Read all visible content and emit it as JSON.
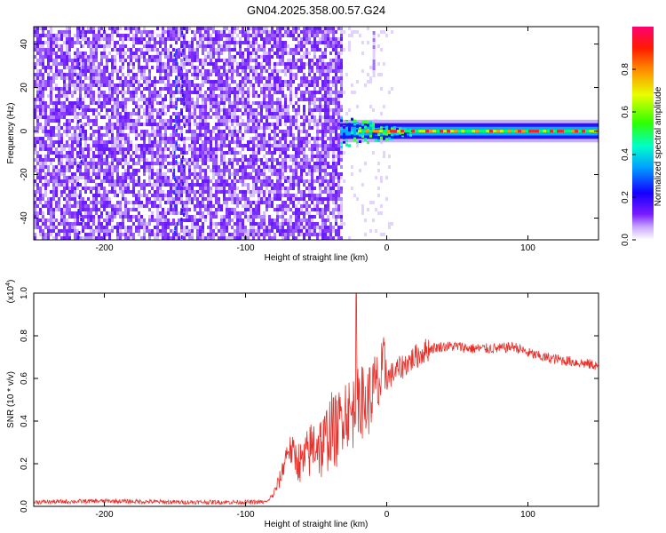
{
  "title": "GN04.2025.358.00.57.G24",
  "chart_data": [
    {
      "type": "heatmap",
      "name": "spectrogram",
      "xlabel": "Height of straight line (km)",
      "ylabel": "Frequency (Hz)",
      "xlim": [
        -250,
        150
      ],
      "ylim": [
        -50,
        48
      ],
      "xticks": [
        -200,
        -100,
        0,
        100
      ],
      "yticks": [
        -40,
        -20,
        0,
        20,
        40
      ],
      "noise_region_x": [
        -250,
        -33
      ],
      "signal_band": {
        "x_start": -33,
        "x_end": 150,
        "center_freq_hz": 0,
        "halfwidth_hz": 4
      },
      "colorbar": {
        "label": "Normalized spectral amplitude",
        "range": [
          0.0,
          1.0
        ],
        "ticks": [
          0.0,
          0.2,
          0.4,
          0.6,
          0.8
        ],
        "colors": [
          "#ffffff",
          "#9b59ff",
          "#6a00ff",
          "#0000ff",
          "#00c8ff",
          "#00ff80",
          "#7fff00",
          "#ffff00",
          "#ff8000",
          "#ff0000",
          "#ff0080"
        ]
      }
    },
    {
      "type": "line",
      "name": "snr",
      "xlabel": "Height of straight line (km)",
      "ylabel": "SNR (10 * v/v)",
      "scale_label": "(x10",
      "scale_exp": "4",
      "scale_close": ")",
      "xlim": [
        -250,
        150
      ],
      "ylim": [
        0,
        1.0
      ],
      "xticks": [
        -200,
        -100,
        0,
        100
      ],
      "yticks": [
        0.0,
        0.2,
        0.4,
        0.6,
        0.8,
        1.0
      ],
      "color": "#e8302a",
      "series": [
        {
          "name": "SNR",
          "x": [
            -250,
            -200,
            -150,
            -100,
            -85,
            -80,
            -75,
            -70,
            -60,
            -50,
            -45,
            -40,
            -35,
            -30,
            -25,
            -20,
            -15,
            -10,
            -5,
            0,
            10,
            20,
            30,
            40,
            50,
            60,
            70,
            80,
            90,
            100,
            110,
            120,
            130,
            140,
            150
          ],
          "y": [
            0.02,
            0.025,
            0.02,
            0.02,
            0.02,
            0.05,
            0.12,
            0.25,
            0.15,
            0.25,
            0.2,
            0.3,
            0.28,
            0.4,
            0.35,
            0.45,
            0.4,
            0.47,
            0.5,
            0.6,
            0.65,
            0.7,
            0.74,
            0.75,
            0.75,
            0.74,
            0.74,
            0.74,
            0.75,
            0.72,
            0.7,
            0.69,
            0.68,
            0.67,
            0.66
          ]
        }
      ]
    }
  ]
}
